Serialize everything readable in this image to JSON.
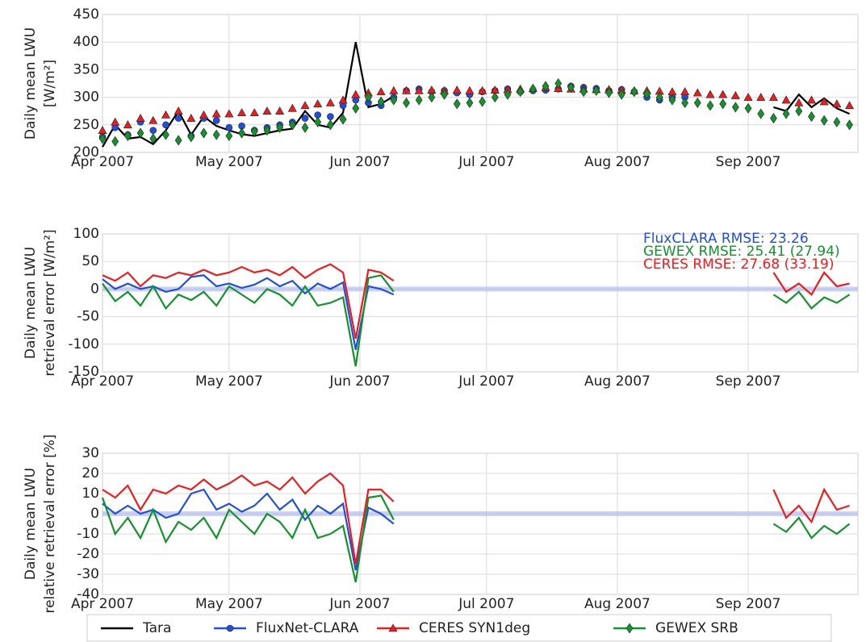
{
  "chart_data": [
    {
      "type": "line",
      "ylabel": [
        "Daily mean LWU",
        "[W/m²]"
      ],
      "grid": true,
      "xlim": [
        0,
        179
      ],
      "ylim": [
        200,
        450
      ],
      "xticks": [
        {
          "value": 0,
          "label": "Apr 2007"
        },
        {
          "value": 30,
          "label": "May 2007"
        },
        {
          "value": 61,
          "label": "Jun 2007"
        },
        {
          "value": 91,
          "label": "Jul 2007"
        },
        {
          "value": 122,
          "label": "Aug 2007"
        },
        {
          "value": 153,
          "label": "Sep 2007"
        }
      ],
      "yticks": [
        200,
        250,
        300,
        350,
        400,
        450
      ],
      "legend": "lower center outside",
      "x": [
        0,
        3,
        6,
        9,
        12,
        15,
        18,
        21,
        24,
        27,
        30,
        33,
        36,
        39,
        42,
        45,
        48,
        51,
        54,
        57,
        60,
        63,
        66,
        69,
        72,
        75,
        78,
        81,
        84,
        87,
        90,
        93,
        96,
        99,
        102,
        105,
        108,
        111,
        114,
        117,
        120,
        123,
        126,
        129,
        132,
        135,
        138,
        141,
        144,
        147,
        150,
        153,
        156,
        159,
        162,
        165,
        168,
        171,
        174,
        177
      ],
      "series": [
        {
          "name": "Tara",
          "color": "#000000",
          "line": true,
          "marker": null,
          "values": [
            210,
            250,
            225,
            228,
            215,
            240,
            275,
            232,
            265,
            248,
            240,
            233,
            230,
            235,
            240,
            243,
            275,
            250,
            245,
            272,
            400,
            282,
            288,
            302,
            null,
            null,
            null,
            null,
            null,
            null,
            null,
            null,
            null,
            null,
            null,
            null,
            null,
            null,
            null,
            null,
            null,
            null,
            null,
            null,
            null,
            null,
            null,
            null,
            null,
            null,
            null,
            null,
            null,
            282,
            275,
            305,
            282,
            298,
            280,
            270
          ]
        },
        {
          "name": "FluxNet-CLARA",
          "color": "#1f4fe0",
          "line": false,
          "marker": "circle",
          "values": [
            228,
            245,
            232,
            255,
            240,
            250,
            262,
            230,
            262,
            258,
            245,
            248,
            240,
            245,
            250,
            255,
            262,
            268,
            265,
            285,
            295,
            290,
            285,
            300,
            312,
            315,
            310,
            312,
            308,
            305,
            310,
            312,
            315,
            310,
            312,
            313,
            315,
            320,
            318,
            316,
            312,
            314,
            310,
            300,
            295,
            300,
            300,
            null,
            null,
            null,
            null,
            null,
            null,
            null,
            null,
            null,
            null,
            null,
            null,
            null
          ]
        },
        {
          "name": "CERES SYN1deg",
          "color": "#ee1c1c",
          "line": false,
          "marker": "triangle",
          "values": [
            240,
            255,
            250,
            262,
            258,
            268,
            275,
            262,
            268,
            270,
            270,
            272,
            272,
            275,
            275,
            280,
            285,
            288,
            290,
            295,
            305,
            308,
            310,
            312,
            312,
            312,
            313,
            312,
            313,
            312,
            312,
            313,
            314,
            315,
            316,
            318,
            316,
            315,
            315,
            314,
            314,
            313,
            312,
            312,
            311,
            310,
            310,
            308,
            305,
            305,
            303,
            300,
            300,
            300,
            295,
            290,
            295,
            292,
            288,
            285
          ]
        },
        {
          "name": "GEWEX SRB",
          "color": "#13932b",
          "line": false,
          "marker": "diamond",
          "values": [
            225,
            220,
            230,
            235,
            225,
            232,
            222,
            228,
            235,
            232,
            230,
            235,
            238,
            240,
            245,
            250,
            245,
            255,
            250,
            260,
            280,
            300,
            292,
            295,
            290,
            295,
            300,
            305,
            288,
            290,
            292,
            300,
            305,
            310,
            315,
            320,
            325,
            318,
            310,
            312,
            308,
            305,
            310,
            306,
            300,
            295,
            290,
            290,
            285,
            288,
            282,
            280,
            270,
            262,
            270,
            275,
            265,
            258,
            255,
            250
          ]
        }
      ]
    },
    {
      "type": "line",
      "ylabel": [
        "Daily mean LWU",
        "retrieval error [W/m²]"
      ],
      "grid": true,
      "zero_band": true,
      "xlim": [
        0,
        179
      ],
      "ylim": [
        -150,
        100
      ],
      "xticks": [
        {
          "value": 0,
          "label": "Apr 2007"
        },
        {
          "value": 30,
          "label": "May 2007"
        },
        {
          "value": 61,
          "label": "Jun 2007"
        },
        {
          "value": 91,
          "label": "Jul 2007"
        },
        {
          "value": 122,
          "label": "Aug 2007"
        },
        {
          "value": 153,
          "label": "Sep 2007"
        }
      ],
      "yticks": [
        -150,
        -100,
        -50,
        0,
        50,
        100
      ],
      "annotations": [
        {
          "text": "FluxCLARA RMSE: 23.26",
          "color": "#1f4fe0"
        },
        {
          "text": "GEWEX RMSE: 25.41 (27.94)",
          "color": "#13932b"
        },
        {
          "text": "CERES RMSE: 27.68 (33.19)",
          "color": "#ee1c1c"
        }
      ],
      "x": [
        0,
        3,
        6,
        9,
        12,
        15,
        18,
        21,
        24,
        27,
        30,
        33,
        36,
        39,
        42,
        45,
        48,
        51,
        54,
        57,
        60,
        63,
        66,
        69,
        72,
        75,
        78,
        81,
        84,
        87,
        90,
        93,
        96,
        99,
        102,
        105,
        108,
        111,
        114,
        117,
        120,
        123,
        126,
        129,
        132,
        135,
        138,
        141,
        144,
        147,
        150,
        153,
        156,
        159,
        162,
        165,
        168,
        171,
        174,
        177
      ],
      "series": [
        {
          "color": "#1f4fe0",
          "line": true,
          "marker": null,
          "values": [
            18,
            0,
            10,
            0,
            5,
            -5,
            0,
            22,
            25,
            5,
            10,
            2,
            8,
            20,
            5,
            15,
            -8,
            10,
            0,
            12,
            -110,
            5,
            0,
            -10,
            null,
            null,
            null,
            null,
            null,
            null,
            null,
            null,
            null,
            null,
            null,
            null,
            null,
            null,
            null,
            null,
            null,
            null,
            null,
            null,
            null,
            null,
            null,
            null,
            null,
            null,
            null,
            null,
            null,
            null,
            null,
            null,
            null,
            null,
            null,
            null
          ]
        },
        {
          "color": "#13932b",
          "line": true,
          "marker": null,
          "values": [
            10,
            -22,
            -5,
            -30,
            5,
            -35,
            -10,
            -20,
            -5,
            -30,
            5,
            -10,
            -25,
            0,
            -10,
            -30,
            5,
            -30,
            -25,
            -15,
            -140,
            20,
            25,
            -5,
            null,
            null,
            null,
            null,
            null,
            null,
            null,
            null,
            null,
            null,
            null,
            null,
            null,
            null,
            null,
            null,
            null,
            null,
            null,
            null,
            null,
            null,
            null,
            null,
            null,
            null,
            null,
            null,
            null,
            -10,
            -25,
            -5,
            -35,
            -15,
            -25,
            -10
          ]
        },
        {
          "color": "#ee1c1c",
          "line": true,
          "marker": null,
          "values": [
            25,
            15,
            30,
            5,
            25,
            20,
            30,
            25,
            35,
            25,
            30,
            40,
            30,
            35,
            25,
            40,
            20,
            35,
            45,
            30,
            -90,
            35,
            30,
            15,
            null,
            null,
            null,
            null,
            null,
            null,
            null,
            null,
            null,
            null,
            null,
            null,
            null,
            null,
            null,
            null,
            null,
            null,
            null,
            null,
            null,
            null,
            null,
            null,
            null,
            null,
            null,
            null,
            null,
            30,
            -5,
            10,
            -10,
            30,
            5,
            10
          ]
        }
      ]
    },
    {
      "type": "line",
      "ylabel": [
        "Daily mean LWU",
        "relative retrieval error [%]"
      ],
      "grid": true,
      "zero_band": true,
      "xlim": [
        0,
        179
      ],
      "ylim": [
        -40,
        30
      ],
      "xticks": [
        {
          "value": 0,
          "label": "Apr 2007"
        },
        {
          "value": 30,
          "label": "May 2007"
        },
        {
          "value": 61,
          "label": "Jun 2007"
        },
        {
          "value": 91,
          "label": "Jul 2007"
        },
        {
          "value": 122,
          "label": "Aug 2007"
        },
        {
          "value": 153,
          "label": "Sep 2007"
        }
      ],
      "yticks": [
        -40,
        -30,
        -20,
        -10,
        0,
        10,
        20,
        30
      ],
      "x": [
        0,
        3,
        6,
        9,
        12,
        15,
        18,
        21,
        24,
        27,
        30,
        33,
        36,
        39,
        42,
        45,
        48,
        51,
        54,
        57,
        60,
        63,
        66,
        69,
        72,
        75,
        78,
        81,
        84,
        87,
        90,
        93,
        96,
        99,
        102,
        105,
        108,
        111,
        114,
        117,
        120,
        123,
        126,
        129,
        132,
        135,
        138,
        141,
        144,
        147,
        150,
        153,
        156,
        159,
        162,
        165,
        168,
        171,
        174,
        177
      ],
      "series": [
        {
          "color": "#1f4fe0",
          "line": true,
          "marker": null,
          "values": [
            5,
            0,
            4,
            0,
            2,
            -2,
            0,
            10,
            12,
            2,
            5,
            1,
            4,
            10,
            2,
            7,
            -3,
            4,
            0,
            5,
            -28,
            3,
            0,
            -5,
            null,
            null,
            null,
            null,
            null,
            null,
            null,
            null,
            null,
            null,
            null,
            null,
            null,
            null,
            null,
            null,
            null,
            null,
            null,
            null,
            null,
            null,
            null,
            null,
            null,
            null,
            null,
            null,
            null,
            null,
            null,
            null,
            null,
            null,
            null,
            null
          ]
        },
        {
          "color": "#13932b",
          "line": true,
          "marker": null,
          "values": [
            8,
            -10,
            -2,
            -12,
            2,
            -14,
            -4,
            -8,
            -2,
            -12,
            2,
            -4,
            -10,
            0,
            -4,
            -12,
            2,
            -12,
            -10,
            -6,
            -34,
            8,
            9,
            -3,
            null,
            null,
            null,
            null,
            null,
            null,
            null,
            null,
            null,
            null,
            null,
            null,
            null,
            null,
            null,
            null,
            null,
            null,
            null,
            null,
            null,
            null,
            null,
            null,
            null,
            null,
            null,
            null,
            null,
            -5,
            -9,
            -2,
            -12,
            -6,
            -10,
            -5
          ]
        },
        {
          "color": "#ee1c1c",
          "line": true,
          "marker": null,
          "values": [
            12,
            8,
            14,
            2,
            12,
            10,
            14,
            12,
            17,
            12,
            15,
            19,
            14,
            16,
            12,
            18,
            10,
            16,
            20,
            14,
            -25,
            12,
            12,
            6,
            null,
            null,
            null,
            null,
            null,
            null,
            null,
            null,
            null,
            null,
            null,
            null,
            null,
            null,
            null,
            null,
            null,
            null,
            null,
            null,
            null,
            null,
            null,
            null,
            null,
            null,
            null,
            null,
            null,
            12,
            -2,
            4,
            -4,
            12,
            2,
            4
          ]
        }
      ]
    }
  ]
}
